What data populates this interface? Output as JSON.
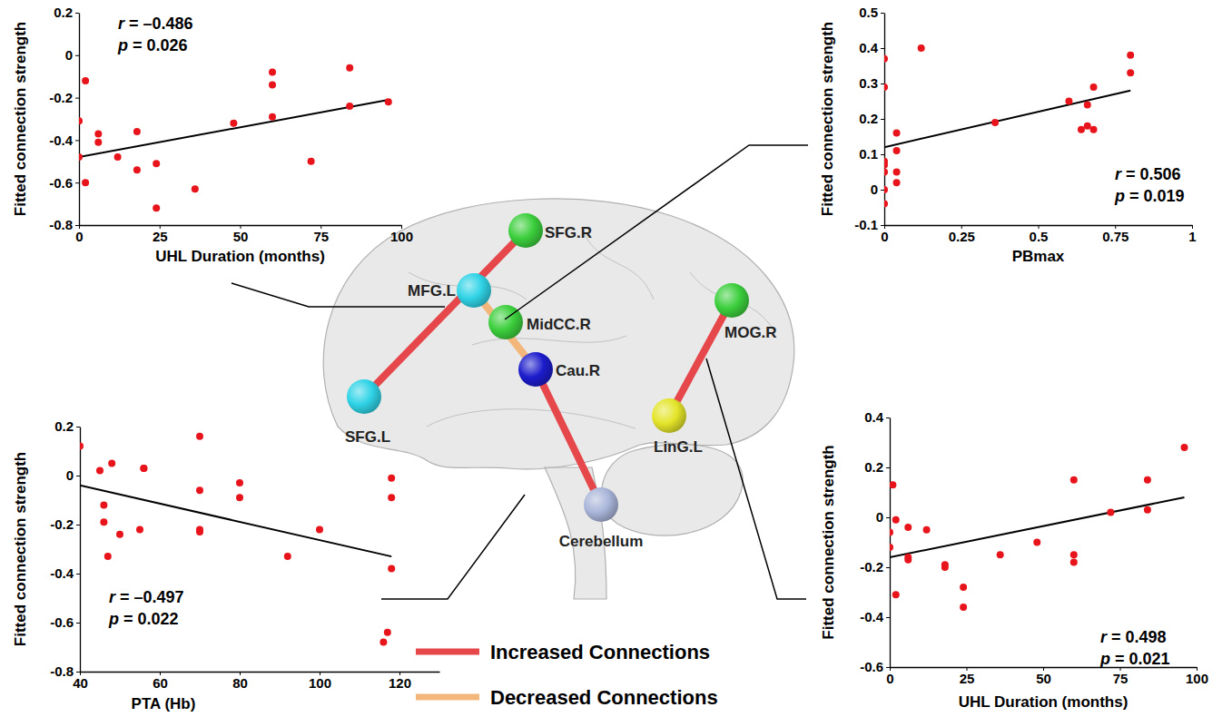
{
  "chart_data": [
    {
      "type": "scatter",
      "x_label": "UHL Duration (months)",
      "y_label": "Fitted connection strength",
      "color": "#e8141b",
      "x": [
        0,
        0,
        2,
        2,
        6,
        6,
        12,
        18,
        18,
        24,
        24,
        36,
        48,
        60,
        60,
        60,
        72,
        84,
        84,
        96
      ],
      "values": [
        -0.31,
        -0.48,
        -0.12,
        -0.6,
        -0.37,
        -0.41,
        -0.48,
        -0.36,
        -0.54,
        -0.51,
        -0.72,
        -0.63,
        -0.32,
        -0.08,
        -0.14,
        -0.29,
        -0.5,
        -0.06,
        -0.24,
        -0.22
      ],
      "xlim": [
        0,
        100
      ],
      "xticks": [
        0,
        25,
        50,
        75,
        100
      ],
      "ylim": [
        -0.8,
        0.2
      ],
      "yticks": [
        -0.8,
        -0.6,
        -0.4,
        -0.2,
        0,
        0.2
      ],
      "fit_line": {
        "x": [
          0,
          96
        ],
        "values": [
          -0.48,
          -0.21
        ],
        "color": "#000000"
      },
      "annotations": [
        "r = –0.486",
        "p = 0.026"
      ]
    },
    {
      "type": "scatter",
      "x_label": "PBmax",
      "y_label": "Fitted connection strength",
      "color": "#e8141b",
      "x": [
        0,
        0,
        0,
        0,
        0,
        0,
        0,
        0.04,
        0.04,
        0.04,
        0.04,
        0.12,
        0.36,
        0.6,
        0.64,
        0.66,
        0.66,
        0.68,
        0.68,
        0.8,
        0.8
      ],
      "values": [
        0.37,
        0.29,
        0.08,
        0.07,
        0.05,
        0,
        -0.04,
        0.16,
        0.11,
        0.05,
        0.02,
        0.4,
        0.19,
        0.25,
        0.17,
        0.24,
        0.18,
        0.29,
        0.17,
        0.38,
        0.33
      ],
      "xlim": [
        0,
        1
      ],
      "xticks": [
        0,
        0.25,
        0.5,
        0.75,
        1
      ],
      "ylim": [
        -0.1,
        0.5
      ],
      "yticks": [
        -0.1,
        0,
        0.1,
        0.2,
        0.3,
        0.4,
        0.5
      ],
      "fit_line": {
        "x": [
          0,
          0.8
        ],
        "values": [
          0.12,
          0.28
        ],
        "color": "#000000"
      },
      "annotations": [
        "r = 0.506",
        "p = 0.019"
      ]
    },
    {
      "type": "scatter",
      "x_label": "PTA (Hb)",
      "y_label": "Fitted connection strength",
      "color": "#e8141b",
      "x": [
        40,
        45,
        46,
        46,
        47,
        48,
        50,
        55,
        56,
        56,
        70,
        70,
        70,
        70,
        80,
        80,
        92,
        100,
        116,
        117,
        118,
        118,
        118
      ],
      "values": [
        0.12,
        0.02,
        -0.12,
        -0.19,
        -0.33,
        0.05,
        -0.24,
        -0.22,
        0.03,
        0.03,
        0.16,
        -0.06,
        -0.22,
        -0.23,
        -0.03,
        -0.09,
        -0.33,
        -0.22,
        -0.68,
        -0.64,
        -0.01,
        -0.09,
        -0.38
      ],
      "xlim": [
        40,
        130
      ],
      "xticks": [
        40,
        60,
        80,
        100,
        120
      ],
      "ylim": [
        -0.8,
        0.2
      ],
      "yticks": [
        -0.8,
        -0.6,
        -0.4,
        -0.2,
        0,
        0.2
      ],
      "fit_line": {
        "x": [
          40,
          118
        ],
        "values": [
          -0.04,
          -0.33
        ],
        "color": "#000000"
      },
      "annotations": [
        "r = –0.497",
        "p = 0.022"
      ]
    },
    {
      "type": "scatter",
      "x_label": "UHL Duration (months)",
      "y_label": "Fitted connection strength",
      "color": "#e8141b",
      "x": [
        0,
        0,
        1,
        2,
        2,
        6,
        6,
        6,
        12,
        18,
        18,
        24,
        24,
        36,
        48,
        60,
        60,
        60,
        72,
        84,
        84,
        96
      ],
      "values": [
        -0.12,
        -0.06,
        0.13,
        -0.31,
        -0.01,
        -0.04,
        -0.16,
        -0.17,
        -0.05,
        -0.19,
        -0.2,
        -0.28,
        -0.36,
        -0.15,
        -0.1,
        0.15,
        -0.15,
        -0.18,
        0.02,
        0.15,
        0.03,
        0.28
      ],
      "xlim": [
        0,
        100
      ],
      "xticks": [
        0,
        25,
        50,
        75,
        100
      ],
      "ylim": [
        -0.6,
        0.4
      ],
      "yticks": [
        -0.6,
        -0.4,
        -0.2,
        0,
        0.2,
        0.4
      ],
      "fit_line": {
        "x": [
          0,
          96
        ],
        "values": [
          -0.16,
          0.08
        ],
        "color": "#000000"
      },
      "annotations": [
        "r = 0.498",
        "p = 0.021"
      ]
    }
  ],
  "diagram": {
    "nodes": [
      {
        "label": "SFG.R",
        "color": "#3ccf3c"
      },
      {
        "label": "MFG.L",
        "color": "#2fd3e6"
      },
      {
        "label": "MidCC.R",
        "color": "#3ccf3c"
      },
      {
        "label": "Cau.R",
        "color": "#1c1ccc"
      },
      {
        "label": "SFG.L",
        "color": "#2fd3e6"
      },
      {
        "label": "Cerebellum",
        "color": "#a9b5d9"
      },
      {
        "label": "MOG.R",
        "color": "#3ccf3c"
      },
      {
        "label": "LinG.L",
        "color": "#e4e42a"
      }
    ],
    "edges": [
      {
        "source": 0,
        "target": 4,
        "kind": 0
      },
      {
        "source": 1,
        "target": 3,
        "kind": 1
      },
      {
        "source": 3,
        "target": 5,
        "kind": 0
      },
      {
        "source": 6,
        "target": 7,
        "kind": 0
      }
    ],
    "legend_items": [
      {
        "label": "Increased Connections",
        "color": "#e5474b"
      },
      {
        "label": "Decreased Connections",
        "color": "#f3b77c"
      }
    ]
  }
}
